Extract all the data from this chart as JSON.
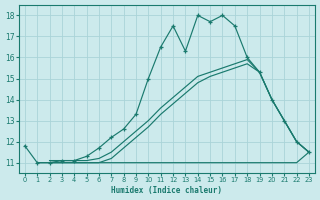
{
  "xlabel": "Humidex (Indice chaleur)",
  "bg_color": "#cceaec",
  "grid_color": "#aad4d8",
  "line_color": "#1a7a6e",
  "xlim": [
    -0.5,
    23.5
  ],
  "ylim": [
    10.5,
    18.5
  ],
  "xticks": [
    0,
    1,
    2,
    3,
    4,
    5,
    6,
    7,
    8,
    9,
    10,
    11,
    12,
    13,
    14,
    15,
    16,
    17,
    18,
    19,
    20,
    21,
    22,
    23
  ],
  "yticks": [
    11,
    12,
    13,
    14,
    15,
    16,
    17,
    18
  ],
  "main_x": [
    0,
    1,
    2,
    3,
    4,
    5,
    6,
    7,
    8,
    9,
    10,
    11,
    12,
    13,
    14,
    15,
    16,
    17,
    18,
    19,
    20,
    21,
    22,
    23
  ],
  "main_y": [
    11.8,
    11.0,
    11.0,
    11.1,
    11.1,
    11.3,
    11.7,
    12.2,
    12.6,
    13.3,
    15.0,
    16.5,
    17.5,
    16.3,
    18.0,
    17.7,
    18.0,
    17.5,
    16.0,
    15.3,
    14.0,
    13.0,
    12.0,
    11.5
  ],
  "flat_x": [
    1,
    2,
    3,
    4,
    5,
    6,
    7,
    8,
    9,
    10,
    11,
    12,
    13,
    14,
    15,
    16,
    17,
    18,
    19,
    20,
    21,
    22,
    23
  ],
  "flat_y": [
    11.0,
    11.0,
    11.0,
    11.0,
    11.0,
    11.0,
    11.0,
    11.0,
    11.0,
    11.0,
    11.0,
    11.0,
    11.0,
    11.0,
    11.0,
    11.0,
    11.0,
    11.0,
    11.0,
    11.0,
    11.0,
    11.0,
    11.5
  ],
  "diag1_x": [
    2,
    3,
    4,
    5,
    6,
    7,
    8,
    9,
    10,
    11,
    12,
    13,
    14,
    15,
    16,
    17,
    18,
    19,
    20,
    21,
    22,
    23
  ],
  "diag1_y": [
    11.1,
    11.1,
    11.1,
    11.1,
    11.2,
    11.5,
    12.0,
    12.5,
    13.0,
    13.6,
    14.1,
    14.6,
    15.1,
    15.3,
    15.5,
    15.7,
    15.9,
    15.3,
    14.0,
    13.0,
    12.0,
    11.5
  ],
  "diag2_x": [
    2,
    3,
    4,
    5,
    6,
    7,
    8,
    9,
    10,
    11,
    12,
    13,
    14,
    15,
    16,
    17,
    18,
    19,
    20,
    21,
    22,
    23
  ],
  "diag2_y": [
    11.0,
    11.0,
    11.0,
    11.0,
    11.0,
    11.2,
    11.7,
    12.2,
    12.7,
    13.3,
    13.8,
    14.3,
    14.8,
    15.1,
    15.3,
    15.5,
    15.7,
    15.3,
    14.0,
    13.0,
    12.0,
    11.5
  ]
}
